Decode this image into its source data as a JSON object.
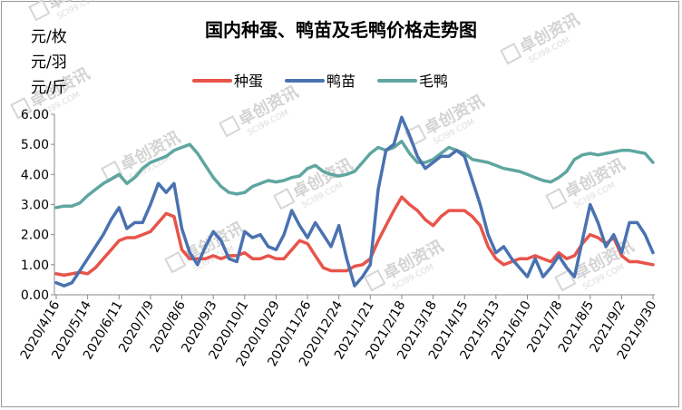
{
  "chart_data": {
    "type": "line",
    "title": "国内种蛋、鸭苗及毛鸭价格走势图",
    "units": [
      "元/枚",
      "元/羽",
      "元/斤"
    ],
    "ylim": [
      0,
      6
    ],
    "yticks": [
      "0.00",
      "1.00",
      "2.00",
      "3.00",
      "4.00",
      "5.00",
      "6.00"
    ],
    "grid": false,
    "legend_position": "top",
    "x_tick_labels": [
      "2020/4/16",
      "2020/5/14",
      "2020/6/11",
      "2020/7/9",
      "2020/8/6",
      "2020/9/3",
      "2020/10/1",
      "2020/10/29",
      "2020/11/26",
      "2020/12/24",
      "2021/1/21",
      "2021/2/18",
      "2021/3/18",
      "2021/4/15",
      "2021/5/13",
      "2021/6/10",
      "2021/7/8",
      "2021/8/5",
      "2021/9/2",
      "2021/9/30"
    ],
    "x": [
      "2020/4/16",
      "2020/4/23",
      "2020/4/30",
      "2020/5/7",
      "2020/5/14",
      "2020/5/21",
      "2020/5/28",
      "2020/6/4",
      "2020/6/11",
      "2020/6/18",
      "2020/6/25",
      "2020/7/2",
      "2020/7/9",
      "2020/7/16",
      "2020/7/23",
      "2020/7/30",
      "2020/8/6",
      "2020/8/13",
      "2020/8/20",
      "2020/8/27",
      "2020/9/3",
      "2020/9/10",
      "2020/9/17",
      "2020/9/24",
      "2020/10/1",
      "2020/10/8",
      "2020/10/15",
      "2020/10/22",
      "2020/10/29",
      "2020/11/5",
      "2020/11/12",
      "2020/11/19",
      "2020/11/26",
      "2020/12/3",
      "2020/12/10",
      "2020/12/17",
      "2020/12/24",
      "2020/12/31",
      "2021/1/7",
      "2021/1/14",
      "2021/1/21",
      "2021/1/28",
      "2021/2/4",
      "2021/2/11",
      "2021/2/18",
      "2021/2/25",
      "2021/3/4",
      "2021/3/11",
      "2021/3/18",
      "2021/3/25",
      "2021/4/1",
      "2021/4/8",
      "2021/4/15",
      "2021/4/22",
      "2021/4/29",
      "2021/5/6",
      "2021/5/13",
      "2021/5/20",
      "2021/5/27",
      "2021/6/3",
      "2021/6/10",
      "2021/6/17",
      "2021/6/24",
      "2021/7/1",
      "2021/7/8",
      "2021/7/15",
      "2021/7/22",
      "2021/7/29",
      "2021/8/5",
      "2021/8/12",
      "2021/8/19",
      "2021/8/26",
      "2021/9/2",
      "2021/9/9",
      "2021/9/16",
      "2021/9/23",
      "2021/9/30"
    ],
    "series": [
      {
        "name": "种蛋",
        "color": "#e8544a",
        "values": [
          0.7,
          0.65,
          0.7,
          0.75,
          0.7,
          0.9,
          1.2,
          1.5,
          1.8,
          1.9,
          1.9,
          2.0,
          2.1,
          2.4,
          2.7,
          2.6,
          1.5,
          1.2,
          1.2,
          1.2,
          1.3,
          1.2,
          1.3,
          1.3,
          1.4,
          1.2,
          1.2,
          1.3,
          1.2,
          1.2,
          1.5,
          1.8,
          1.7,
          1.3,
          0.9,
          0.8,
          0.8,
          0.8,
          0.95,
          1.0,
          1.2,
          1.8,
          2.3,
          2.8,
          3.25,
          3.0,
          2.8,
          2.5,
          2.3,
          2.6,
          2.8,
          2.8,
          2.8,
          2.6,
          2.3,
          1.6,
          1.2,
          1.0,
          1.1,
          1.2,
          1.2,
          1.3,
          1.2,
          1.1,
          1.4,
          1.2,
          1.3,
          1.7,
          2.0,
          1.9,
          1.7,
          1.9,
          1.3,
          1.1,
          1.1,
          1.05,
          1.0
        ]
      },
      {
        "name": "鸭苗",
        "color": "#4a72b0",
        "values": [
          0.4,
          0.3,
          0.4,
          0.8,
          1.2,
          1.6,
          2.0,
          2.5,
          2.9,
          2.2,
          2.4,
          2.4,
          3.0,
          3.7,
          3.4,
          3.7,
          2.2,
          1.4,
          1.0,
          1.6,
          2.1,
          1.8,
          1.2,
          1.1,
          2.1,
          1.9,
          2.0,
          1.6,
          1.5,
          2.0,
          2.8,
          2.3,
          1.9,
          2.4,
          2.0,
          1.6,
          2.3,
          1.2,
          0.3,
          0.6,
          1.0,
          3.5,
          4.8,
          5.0,
          5.9,
          5.3,
          4.6,
          4.2,
          4.4,
          4.6,
          4.6,
          4.8,
          4.6,
          3.8,
          3.0,
          2.0,
          1.4,
          1.6,
          1.2,
          0.9,
          0.6,
          1.2,
          0.6,
          0.9,
          1.3,
          0.9,
          0.6,
          1.8,
          3.0,
          2.4,
          1.6,
          2.0,
          1.4,
          2.4,
          2.4,
          2.0,
          1.4
        ]
      },
      {
        "name": "毛鸭",
        "color": "#5fa6a0",
        "values": [
          2.9,
          2.95,
          2.95,
          3.05,
          3.3,
          3.5,
          3.7,
          3.85,
          4.0,
          3.7,
          3.9,
          4.2,
          4.4,
          4.5,
          4.6,
          4.8,
          4.9,
          5.0,
          4.7,
          4.3,
          3.9,
          3.6,
          3.4,
          3.35,
          3.4,
          3.6,
          3.7,
          3.8,
          3.75,
          3.8,
          3.9,
          3.95,
          4.2,
          4.3,
          4.1,
          4.0,
          3.95,
          4.0,
          4.1,
          4.4,
          4.7,
          4.9,
          4.8,
          4.9,
          5.1,
          4.7,
          4.4,
          4.4,
          4.5,
          4.7,
          4.9,
          4.8,
          4.7,
          4.5,
          4.45,
          4.4,
          4.3,
          4.2,
          4.15,
          4.1,
          4.0,
          3.9,
          3.8,
          3.75,
          3.9,
          4.1,
          4.5,
          4.65,
          4.7,
          4.65,
          4.7,
          4.75,
          4.8,
          4.8,
          4.75,
          4.7,
          4.4
        ]
      }
    ]
  },
  "watermark": {
    "brand": "卓创资讯",
    "site": "SCI99.COM"
  }
}
